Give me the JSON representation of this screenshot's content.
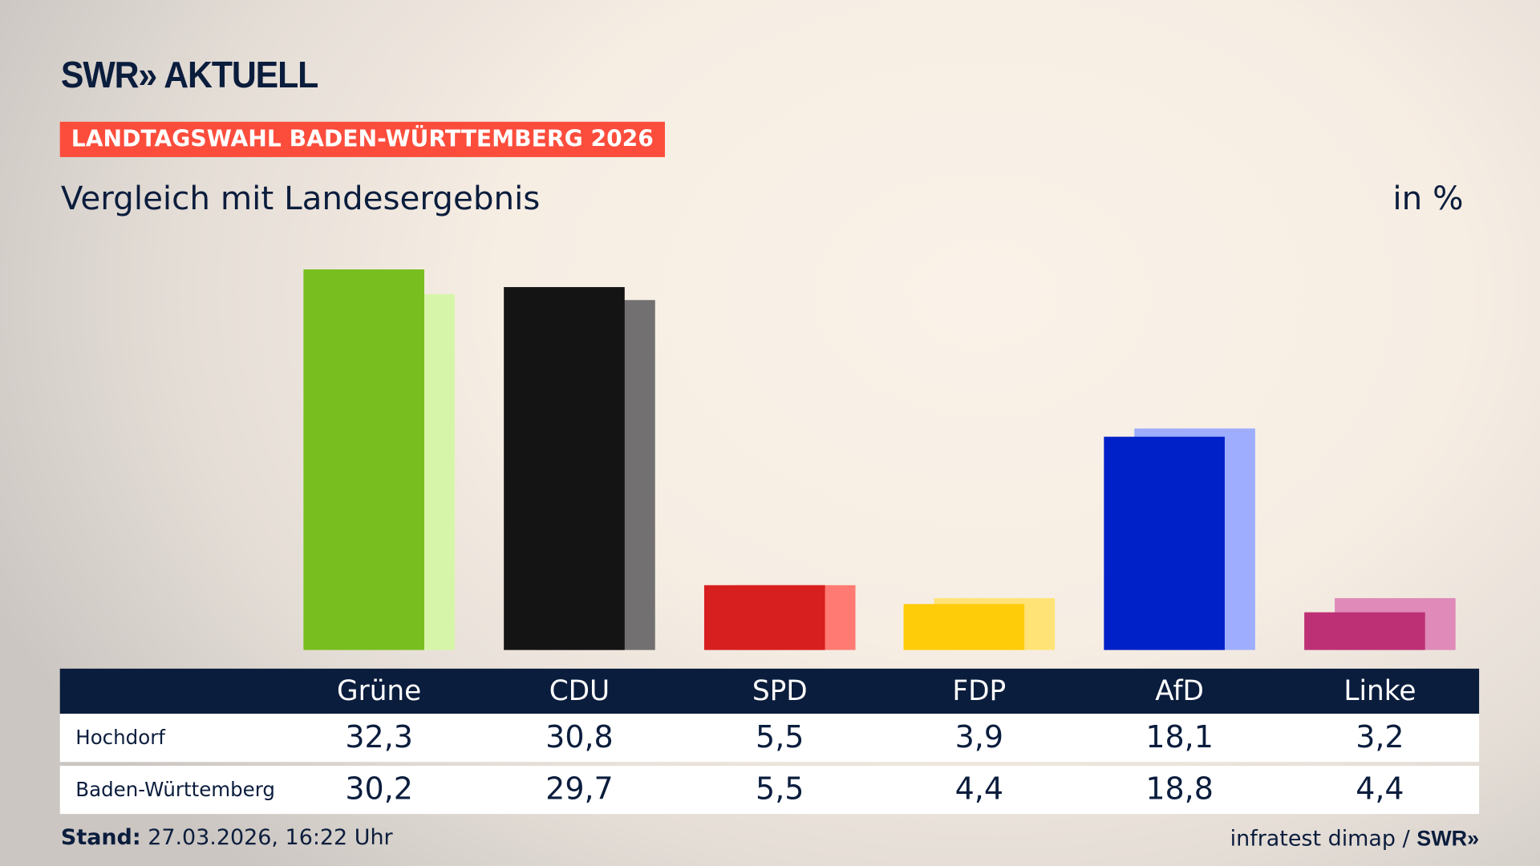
{
  "header": {
    "logo": "SWR» AKTUELL",
    "banner": "LANDTAGSWAHL BADEN-WÜRTTEMBERG 2026",
    "subtitle": "Vergleich mit Landesergebnis",
    "unit": "in %"
  },
  "chart_data": {
    "type": "bar",
    "categories": [
      "Grüne",
      "CDU",
      "SPD",
      "FDP",
      "AfD",
      "Linke"
    ],
    "series": [
      {
        "name": "Hochdorf",
        "values": [
          32.3,
          30.8,
          5.5,
          3.9,
          18.1,
          3.2
        ],
        "colors": [
          "#78be1e",
          "#141414",
          "#d71f1f",
          "#ffcc0a",
          "#0021c8",
          "#bd3075"
        ]
      },
      {
        "name": "Baden-Württemberg",
        "values": [
          30.2,
          29.7,
          5.5,
          4.4,
          18.8,
          4.4
        ],
        "colors": [
          "#d7f5a8",
          "#727070",
          "#ff7a72",
          "#ffe377",
          "#9fadff",
          "#df8ab8"
        ]
      }
    ],
    "value_labels": [
      [
        "32,3",
        "30,8",
        "5,5",
        "3,9",
        "18,1",
        "3,2"
      ],
      [
        "30,2",
        "29,7",
        "5,5",
        "4,4",
        "18,8",
        "4,4"
      ]
    ]
  },
  "footer": {
    "stand_label": "Stand:",
    "stand_value": "27.03.2026, 16:22 Uhr",
    "source": "infratest dimap /",
    "source_logo": "SWR»"
  }
}
